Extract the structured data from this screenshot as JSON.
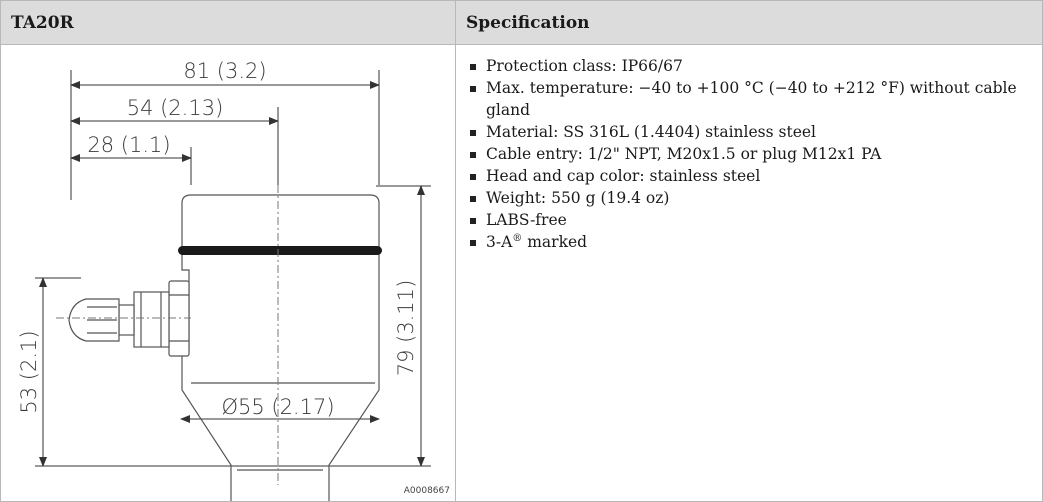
{
  "table": {
    "header_left": "TA20R",
    "header_right": "Specification"
  },
  "drawing": {
    "dim_width_total": "81 (3.2)",
    "dim_width_mid": "54 (2.13)",
    "dim_width_small": "28 (1.1)",
    "dim_height_total": "79 (3.11)",
    "dim_height_entry": "53 (2.1)",
    "dim_diameter": "Ø55 (2.17)",
    "reference_id": "A0008667"
  },
  "specifications": [
    {
      "text": "Protection class: IP66/67"
    },
    {
      "text": "Max. temperature: −40 to +100 °C (−40 to +212 °F) without cable gland"
    },
    {
      "text": "Material: SS 316L (1.4404) stainless steel"
    },
    {
      "text": "Cable entry: 1/2\" NPT, M20x1.5 or plug M12x1 PA"
    },
    {
      "text": "Head and cap color: stainless steel"
    },
    {
      "text": "Weight: 550 g (19.4 oz)"
    },
    {
      "text": "LABS-free"
    },
    {
      "text": "3-A",
      "sup": "®",
      "suffix": " marked"
    }
  ]
}
